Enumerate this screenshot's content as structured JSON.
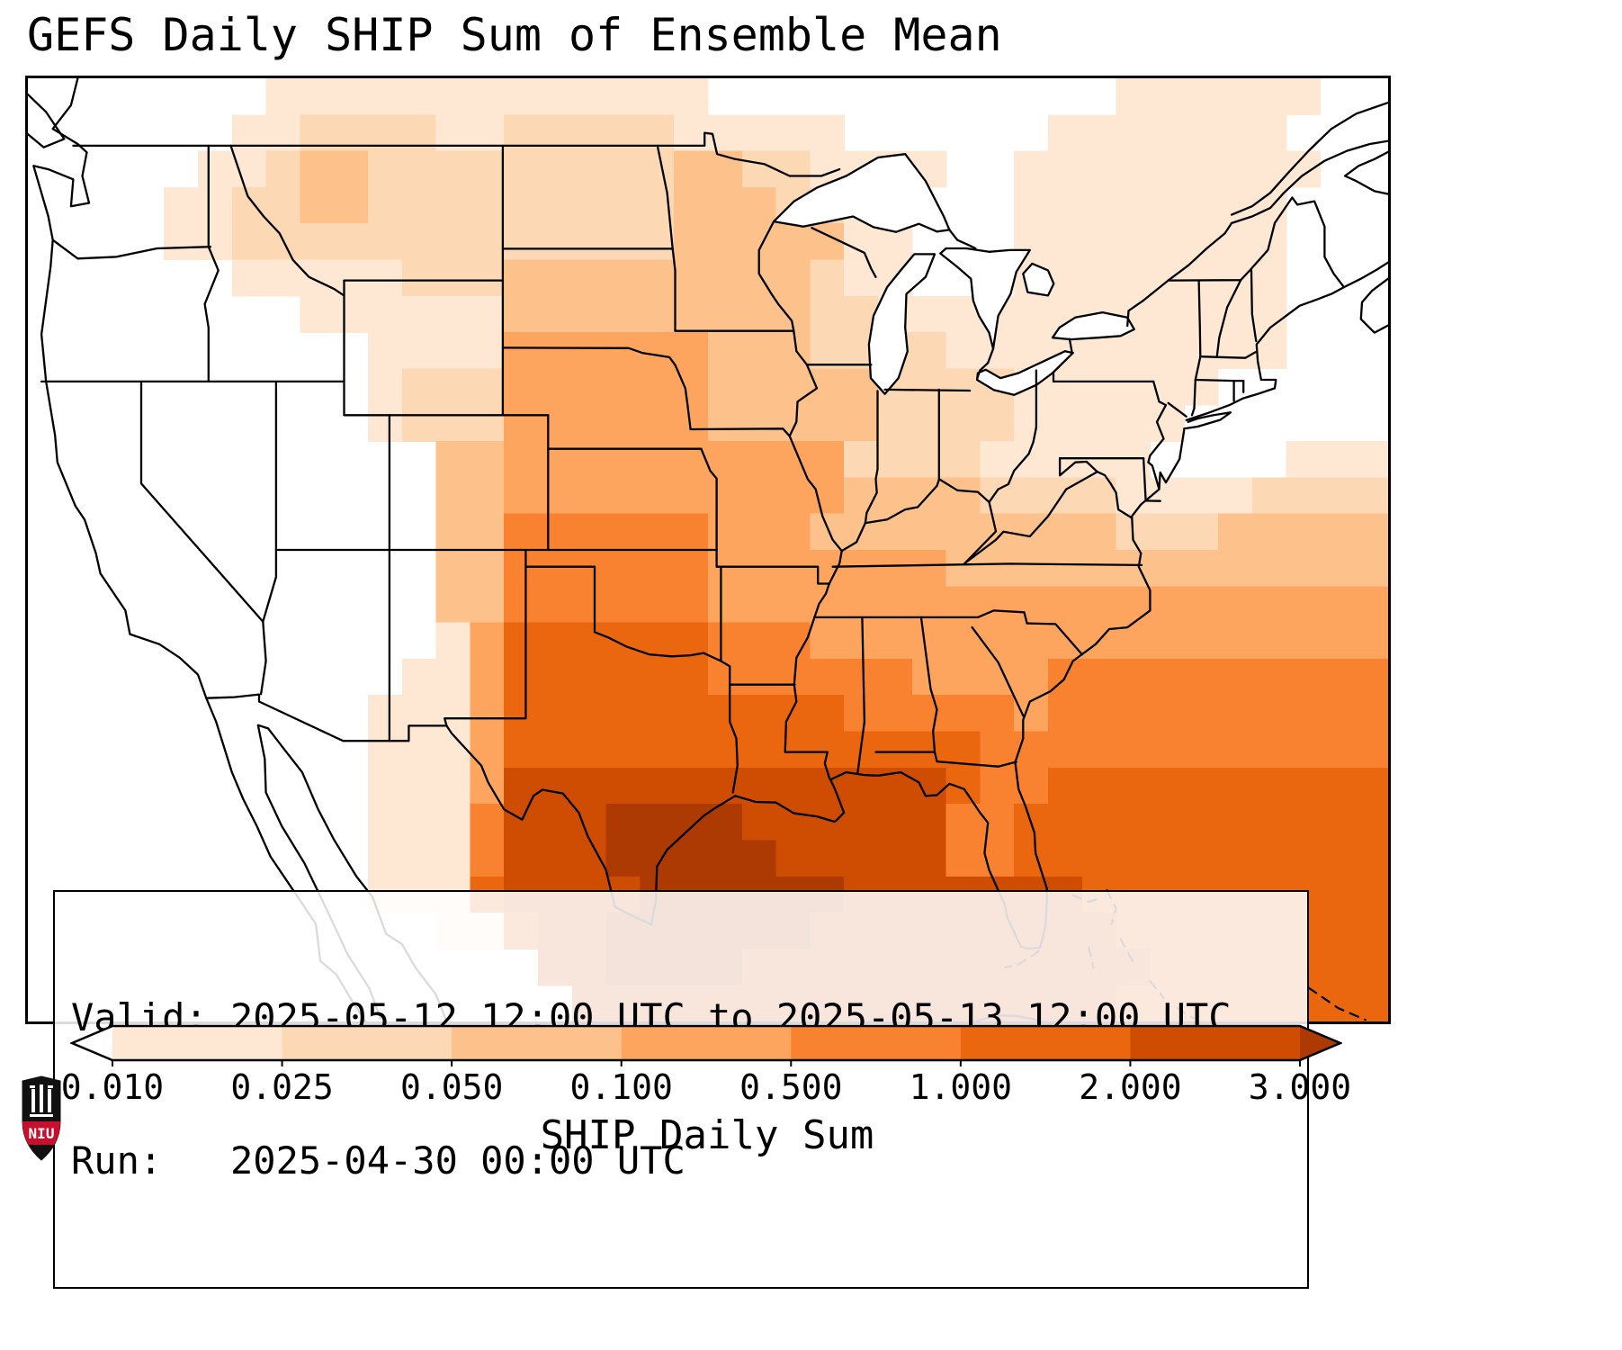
{
  "title": "GEFS Daily SHIP Sum of Ensemble Mean",
  "info_box": {
    "line1": "Valid: 2025-05-12 12:00 UTC to 2025-05-13 12:00 UTC",
    "line2": "Run:   2025-04-30 00:00 UTC"
  },
  "colorbar": {
    "label": "SHIP Daily Sum",
    "ticks": [
      "0.010",
      "0.025",
      "0.050",
      "0.100",
      "0.500",
      "1.000",
      "2.000",
      "3.000"
    ],
    "segment_colors": [
      "#fee8d4",
      "#fdd8b4",
      "#fdc28c",
      "#fda55f",
      "#f98230",
      "#ea670f",
      "#cf4c03"
    ],
    "under_color": "#ffffff",
    "over_color": "#ad3a03"
  },
  "logo": {
    "text": "NIU",
    "shield_color": "#111111",
    "band_color": "#c8102e"
  },
  "chart_data": {
    "type": "heatmap",
    "title": "GEFS Daily SHIP Sum of Ensemble Mean",
    "colorbar_label": "SHIP Daily Sum",
    "levels": [
      0.01,
      0.025,
      0.05,
      0.1,
      0.5,
      1.0,
      2.0,
      3.0
    ],
    "extend": "both",
    "valid": "2025-05-12 12:00 UTC to 2025-05-13 12:00 UTC",
    "run": "2025-04-30 00:00 UTC",
    "grid_extent": {
      "lon_min": -125,
      "lon_max": -65,
      "lat_min": 23,
      "lat_max": 51
    },
    "palette": [
      "#ffffff",
      "#fee8d4",
      "#fdd8b4",
      "#fdc28c",
      "#fda55f",
      "#f98230",
      "#ea670f",
      "#cf4c03",
      "#ad3a03"
    ],
    "grid": [
      "0000000111111111111100000000000011111100",
      "0000001122221122222111110000001111111000",
      "0000011233222222222332211110011111111100",
      "0000112233222222222333221100011111111000",
      "0000112222222222222333331100011111111000",
      "0000001111122233333333321100011111111000",
      "0000000011111133333333322111111111111000",
      "0000000000111144444433322221111111111000",
      "0000000000122244444433333222211111100000",
      "0000000000122244444433333222211111000000",
      "0000000000003344444444442222111110000111",
      "0000000000003344444444443333222211112222",
      "0000000000003355555544433333333322233333",
      "0000000000003355555544444443333333333333",
      "0000000000003355555544444444444444444444",
      "0000000000001466666655544444444444444444",
      "0000000000011466666655555544445555555555",
      "0000000000111466666666665555545555555555",
      "0000000000111466666666666666555555555555",
      "0000000000111477777777777776556666666666",
      "0000000000111577788887777775566666666666",
      "0000000000111577788888777775566666666666",
      "0000000000111677778888887777777666666666",
      "0000000000001167788888877777777766666666",
      "0000000000000007788887777777777776666666",
      "0000000000000000777777777777777766666666"
    ]
  }
}
